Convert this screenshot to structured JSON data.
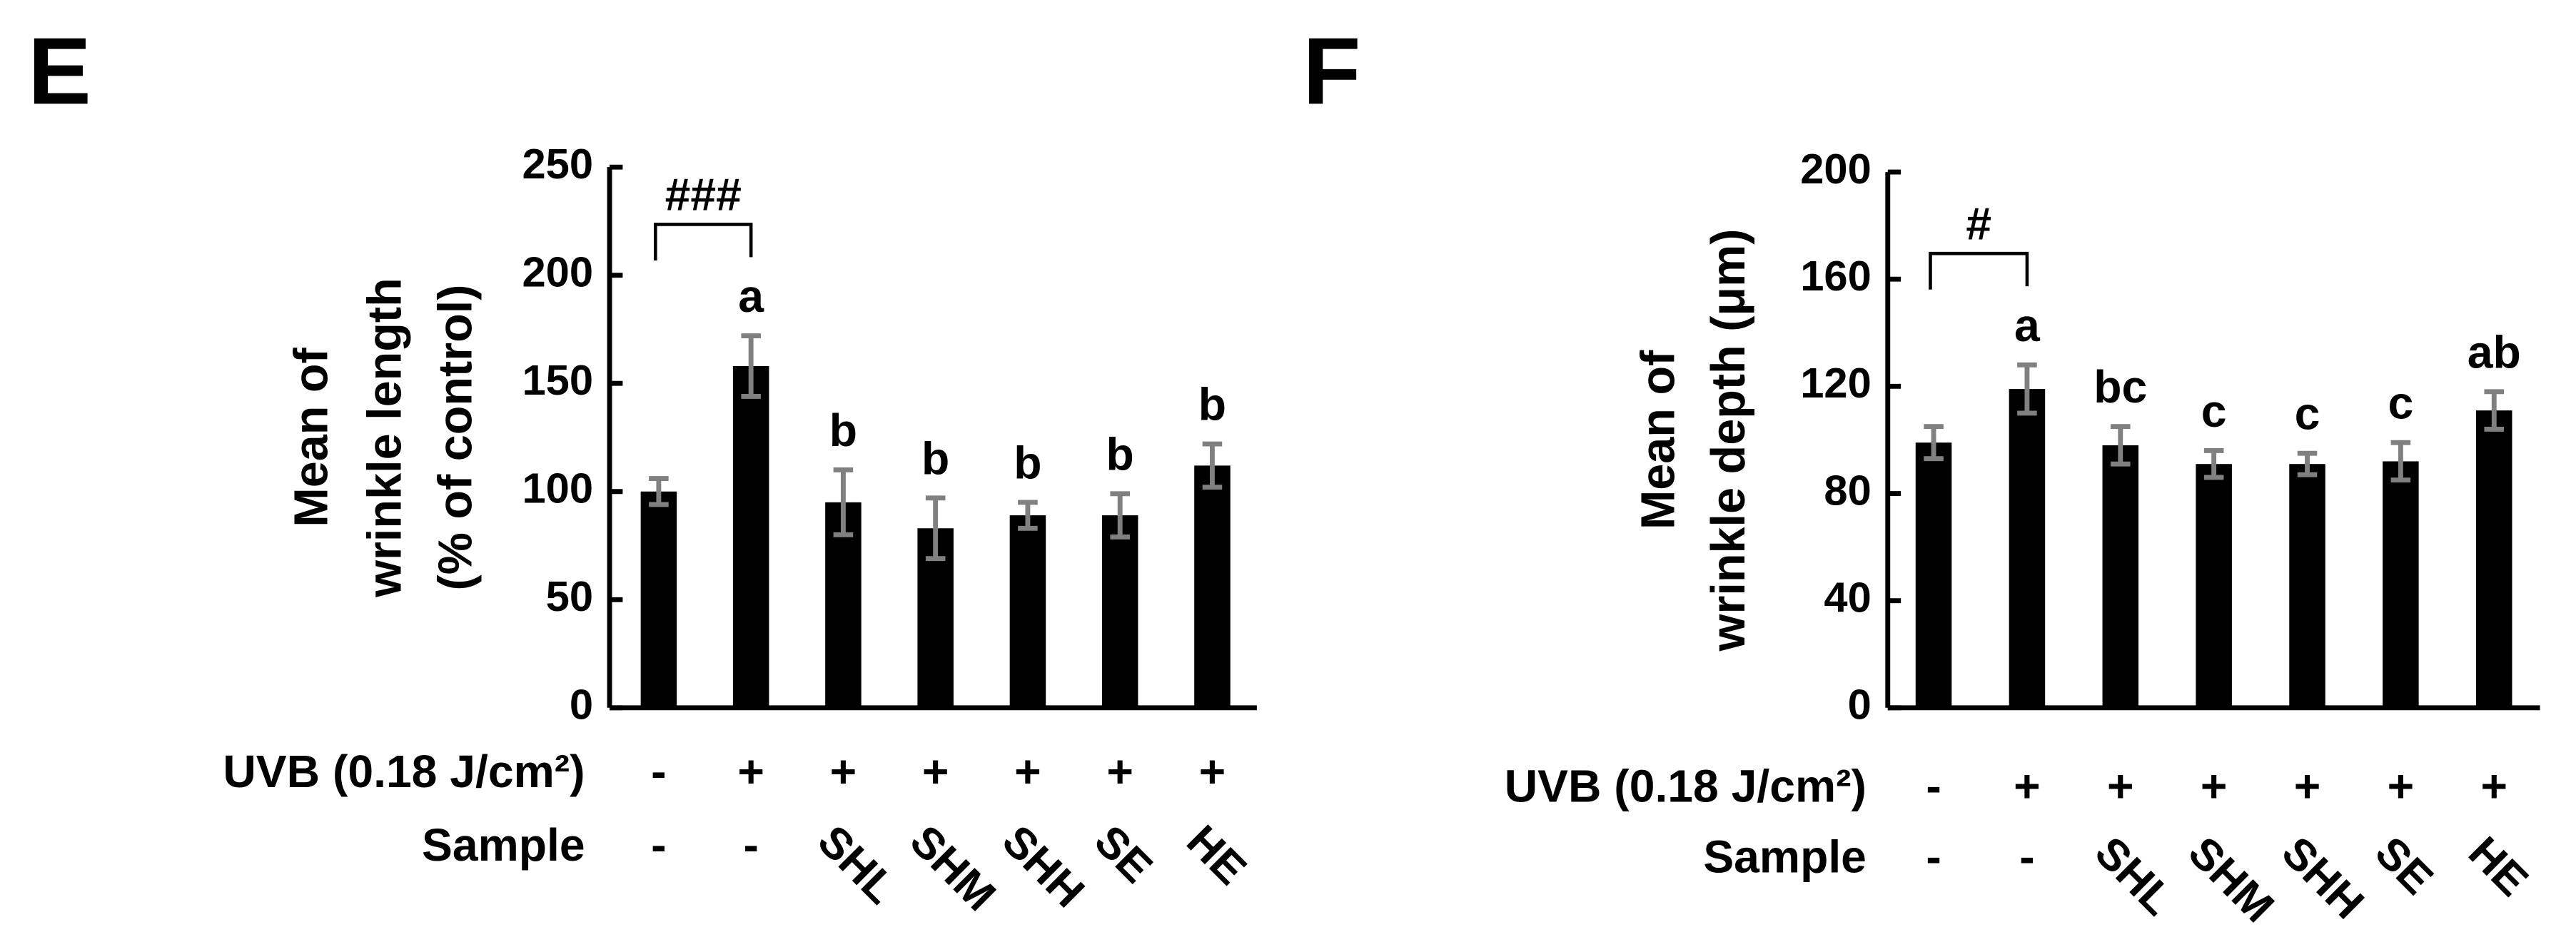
{
  "chart_data": [
    {
      "type": "bar",
      "panel": "E",
      "ylabel": [
        "Mean of",
        "wrinkle length",
        "(% of control)"
      ],
      "ylim": [
        0,
        250
      ],
      "yticks": [
        0,
        50,
        100,
        150,
        200,
        250
      ],
      "color": "#000000",
      "error_color": "#808080",
      "values": [
        100,
        158,
        95,
        83,
        89,
        89,
        112
      ],
      "errors": [
        6,
        14,
        15,
        14,
        6,
        10,
        10
      ],
      "letters": [
        null,
        "a",
        "b",
        "b",
        "b",
        "b",
        "b"
      ],
      "bracket": "###",
      "rows": [
        {
          "label": "UVB (0.18 J/cm²)",
          "values": [
            "-",
            "+",
            "+",
            "+",
            "+",
            "+",
            "+"
          ]
        },
        {
          "label": "Sample",
          "values": [
            "-",
            "-",
            "SHL",
            "SHM",
            "SHH",
            "SE",
            "HE"
          ]
        }
      ]
    },
    {
      "type": "bar",
      "panel": "F",
      "ylabel": [
        "Mean of",
        "wrinkle depth (μm)"
      ],
      "ylim": [
        0,
        200
      ],
      "yticks": [
        0,
        40,
        80,
        120,
        160,
        200
      ],
      "color": "#000000",
      "error_color": "#808080",
      "values": [
        99,
        119,
        98,
        91,
        91,
        92,
        111
      ],
      "errors": [
        6,
        9,
        7,
        5,
        4,
        7,
        7
      ],
      "letters": [
        null,
        "a",
        "bc",
        "c",
        "c",
        "c",
        "ab"
      ],
      "bracket": "#",
      "rows": [
        {
          "label": "UVB (0.18 J/cm²)",
          "values": [
            "-",
            "+",
            "+",
            "+",
            "+",
            "+",
            "+"
          ]
        },
        {
          "label": "Sample",
          "values": [
            "-",
            "-",
            "SHL",
            "SHM",
            "SHH",
            "SE",
            "HE"
          ]
        }
      ]
    }
  ]
}
